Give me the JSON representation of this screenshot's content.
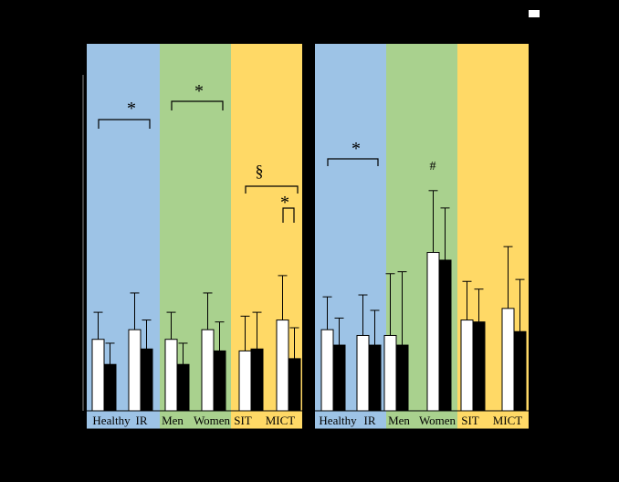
{
  "chart_data": [
    {
      "type": "bar",
      "panel": "left",
      "groups": [
        {
          "name": "blue",
          "color": "#9dc3e6"
        },
        {
          "name": "green",
          "color": "#a9d18e"
        },
        {
          "name": "yellow",
          "color": "#ffd966"
        }
      ],
      "categories": [
        "Healthy",
        "IR",
        "Men",
        "Women",
        "SIT",
        "MICT"
      ],
      "series": [
        {
          "color": "#ffffff",
          "values": [
            37,
            42,
            37,
            42,
            31,
            47
          ],
          "errors": [
            14,
            19,
            14,
            19,
            18,
            23
          ]
        },
        {
          "color": "#000000",
          "values": [
            24,
            32,
            24,
            31,
            32,
            27
          ],
          "errors": [
            11,
            15,
            11,
            15,
            19,
            16
          ]
        }
      ],
      "ylim": [
        0,
        190
      ],
      "annotations": [
        {
          "text": "*",
          "span": [
            "Healthy",
            "IR"
          ]
        },
        {
          "text": "*",
          "span": [
            "Men",
            "Women"
          ]
        },
        {
          "text": "§",
          "span": [
            "SIT",
            "MICT"
          ]
        },
        {
          "text": "*",
          "span": [
            "MICT",
            "MICT"
          ]
        }
      ]
    },
    {
      "type": "bar",
      "panel": "right",
      "groups": [
        {
          "name": "blue",
          "color": "#9dc3e6"
        },
        {
          "name": "green",
          "color": "#a9d18e"
        },
        {
          "name": "yellow",
          "color": "#ffd966"
        }
      ],
      "categories": [
        "Healthy",
        "IR",
        "Men",
        "Women",
        "SIT",
        "MICT"
      ],
      "series": [
        {
          "color": "#ffffff",
          "values": [
            42,
            39,
            39,
            82,
            47,
            53
          ],
          "errors": [
            17,
            21,
            32,
            32,
            20,
            32
          ]
        },
        {
          "color": "#000000",
          "values": [
            34,
            34,
            34,
            78,
            46,
            41
          ],
          "errors": [
            14,
            18,
            38,
            27,
            17,
            27
          ]
        }
      ],
      "ylim": [
        0,
        190
      ],
      "annotations": [
        {
          "text": "*",
          "span": [
            "Healthy",
            "IR"
          ]
        },
        {
          "text": "#",
          "span": [
            "Women",
            "Women"
          ]
        }
      ]
    }
  ]
}
